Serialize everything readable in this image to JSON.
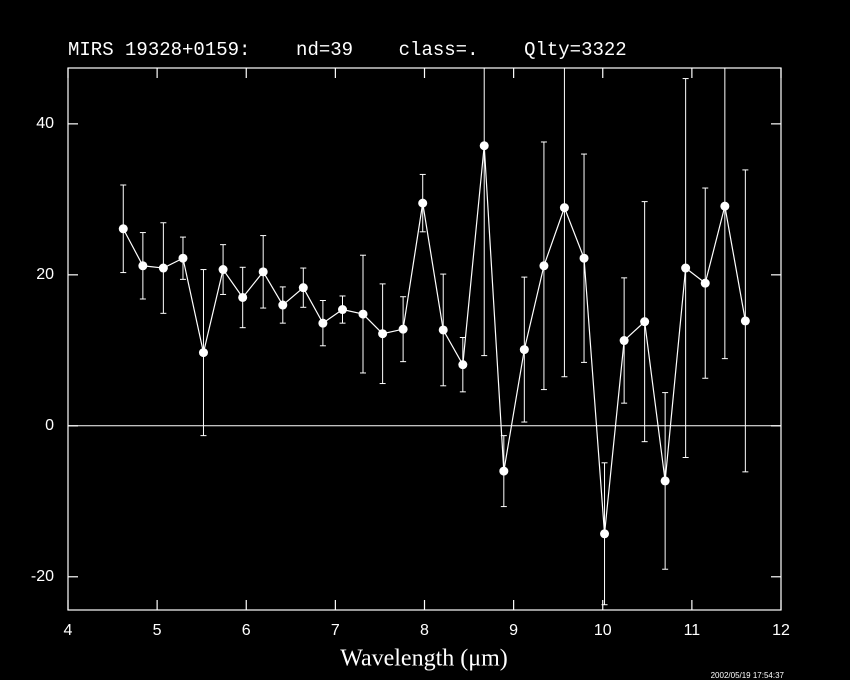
{
  "chart_data": {
    "type": "errorbar",
    "title": "MIRS 19328+0159:    nd=39    class=.    Qlty=3322",
    "x_label": "Wavelength (μm)",
    "timestamp": "2002/05/19 17:54:37",
    "x": [
      4.62,
      4.84,
      5.07,
      5.29,
      5.52,
      5.74,
      5.96,
      6.19,
      6.41,
      6.64,
      6.86,
      7.08,
      7.31,
      7.53,
      7.76,
      7.98,
      8.21,
      8.43,
      8.67,
      8.89,
      9.12,
      9.34,
      9.57,
      9.79,
      10.02,
      10.24,
      10.47,
      10.7,
      10.93,
      11.15,
      11.37,
      11.6
    ],
    "values": [
      26.1,
      21.2,
      20.9,
      22.2,
      9.7,
      20.7,
      17.0,
      20.4,
      16.0,
      18.3,
      13.6,
      15.4,
      14.8,
      12.2,
      12.8,
      29.5,
      12.7,
      8.1,
      37.1,
      -6.0,
      10.1,
      21.2,
      28.9,
      22.2,
      -14.3,
      11.3,
      13.8,
      -7.3,
      20.9,
      18.9,
      29.1,
      13.9
    ],
    "yerr": [
      5.8,
      4.4,
      6.0,
      2.8,
      11.0,
      3.3,
      4.0,
      4.8,
      2.4,
      2.6,
      3.0,
      1.8,
      7.8,
      6.6,
      4.3,
      3.8,
      7.4,
      3.6,
      27.8,
      4.7,
      9.6,
      16.4,
      22.4,
      13.8,
      9.4,
      8.3,
      15.9,
      11.7,
      25.1,
      12.6,
      20.2,
      20.0
    ],
    "color": "#ffffff",
    "reference_line": 0,
    "xlim": [
      4,
      12
    ],
    "xticks": [
      4,
      5,
      6,
      7,
      8,
      9,
      10,
      11,
      12
    ],
    "ylim": [
      -24.4,
      47.4
    ],
    "yticks": [
      -20,
      0,
      20,
      40
    ]
  }
}
